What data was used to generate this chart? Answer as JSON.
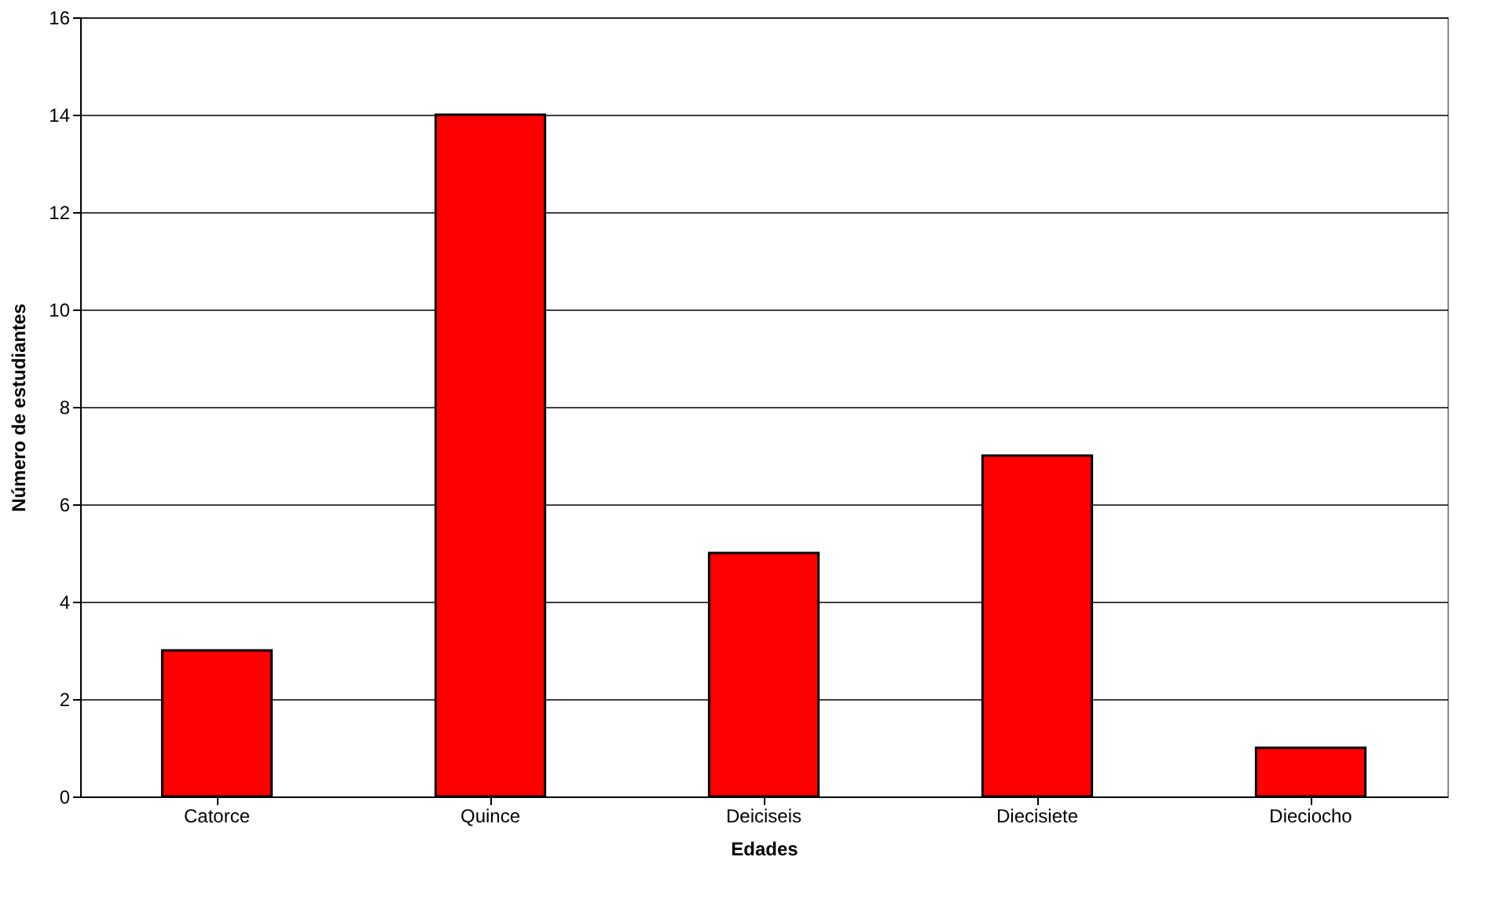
{
  "chart_data": {
    "type": "bar",
    "xlabel": "Edades",
    "ylabel": "Número de estudiantes",
    "categories": [
      "Catorce",
      "Quince",
      "Deiciseis",
      "Diecisiete",
      "Dieciocho"
    ],
    "values": [
      3,
      14,
      5,
      7,
      1
    ],
    "color": "#ff0000",
    "ylim": [
      0,
      16
    ],
    "yticks": [
      0,
      2,
      4,
      6,
      8,
      10,
      12,
      14,
      16
    ],
    "grid": "y"
  }
}
